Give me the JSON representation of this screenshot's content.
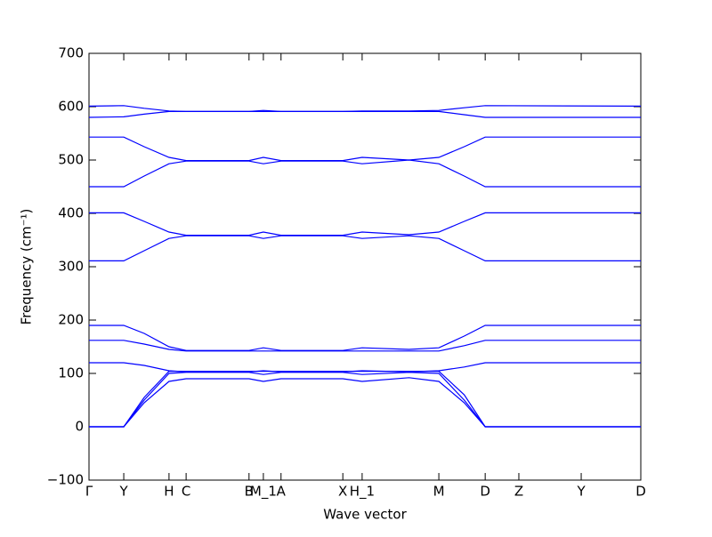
{
  "chart_data": {
    "type": "line",
    "xlabel": "Wave vector",
    "ylabel": "Frequency (cm⁻¹)",
    "color": "#0000ff",
    "x": [
      0,
      0.063,
      0.1,
      0.145,
      0.176,
      0.29,
      0.316,
      0.348,
      0.46,
      0.495,
      0.58,
      0.634,
      0.68,
      0.718,
      1.0
    ],
    "series": [
      {
        "values": [
          0,
          0,
          45,
          85,
          90,
          90,
          85,
          90,
          90,
          85,
          92,
          85,
          45,
          0,
          0
        ]
      },
      {
        "values": [
          0,
          0,
          50,
          100,
          102,
          102,
          98,
          102,
          102,
          98,
          102,
          100,
          50,
          0,
          0
        ]
      },
      {
        "values": [
          0,
          0,
          55,
          104,
          104,
          104,
          104,
          104,
          104,
          104,
          104,
          104,
          60,
          0,
          0
        ]
      },
      {
        "values": [
          120,
          120,
          115,
          105,
          103,
          103,
          105,
          103,
          103,
          105,
          103,
          105,
          112,
          120,
          120
        ]
      },
      {
        "values": [
          162,
          162,
          155,
          145,
          142,
          142,
          142,
          142,
          142,
          142,
          142,
          142,
          152,
          162,
          162
        ]
      },
      {
        "values": [
          190,
          190,
          175,
          150,
          143,
          143,
          148,
          143,
          143,
          148,
          145,
          148,
          170,
          190,
          190
        ]
      },
      {
        "values": [
          311,
          311,
          330,
          353,
          358,
          358,
          353,
          358,
          358,
          353,
          358,
          353,
          330,
          311,
          311
        ]
      },
      {
        "values": [
          401,
          401,
          385,
          365,
          359,
          359,
          365,
          359,
          359,
          365,
          360,
          365,
          385,
          401,
          401
        ]
      },
      {
        "values": [
          450,
          450,
          470,
          493,
          498,
          498,
          493,
          498,
          498,
          493,
          500,
          493,
          470,
          450,
          450
        ]
      },
      {
        "values": [
          543,
          543,
          525,
          505,
          499,
          499,
          505,
          499,
          499,
          505,
          500,
          505,
          525,
          543,
          543
        ]
      },
      {
        "values": [
          580,
          581,
          586,
          591,
          591,
          591,
          591,
          591,
          591,
          591,
          591,
          591,
          585,
          580,
          580
        ]
      },
      {
        "values": [
          601,
          602,
          597,
          592,
          591,
          591,
          593,
          591,
          591,
          592,
          592,
          593,
          598,
          602,
          601
        ]
      }
    ],
    "xlim": [
      0,
      1
    ],
    "xticks": [
      {
        "value": 0,
        "label": "Γ"
      },
      {
        "value": 0.063,
        "label": "Y"
      },
      {
        "value": 0.145,
        "label": "H"
      },
      {
        "value": 0.176,
        "label": "C"
      },
      {
        "value": 0.29,
        "label": "B"
      },
      {
        "value": 0.316,
        "label": "M_1"
      },
      {
        "value": 0.348,
        "label": "A"
      },
      {
        "value": 0.46,
        "label": "X"
      },
      {
        "value": 0.495,
        "label": "H_1"
      },
      {
        "value": 0.634,
        "label": "M"
      },
      {
        "value": 0.718,
        "label": "D"
      },
      {
        "value": 0.779,
        "label": "Z"
      },
      {
        "value": 0.892,
        "label": "Y"
      },
      {
        "value": 1.0,
        "label": "D"
      }
    ],
    "ylim": [
      -100,
      700
    ],
    "yticks": [
      {
        "value": -100,
        "label": "−100"
      },
      0,
      100,
      200,
      300,
      400,
      500,
      600,
      700
    ]
  }
}
